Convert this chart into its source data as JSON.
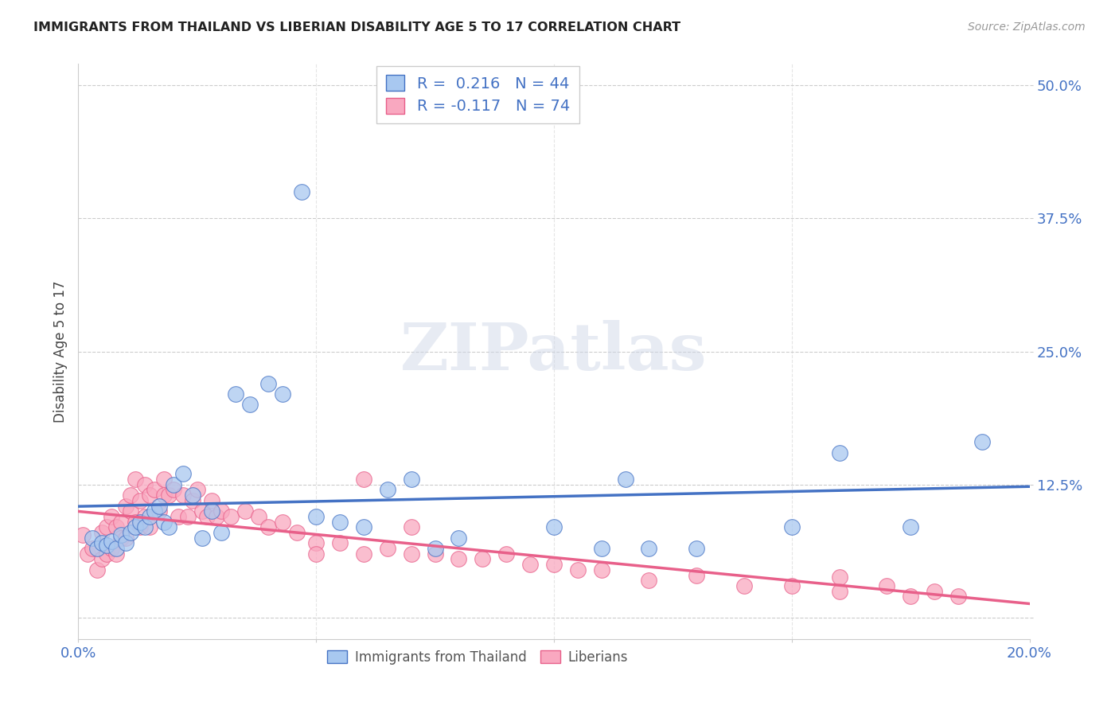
{
  "title": "IMMIGRANTS FROM THAILAND VS LIBERIAN DISABILITY AGE 5 TO 17 CORRELATION CHART",
  "source": "Source: ZipAtlas.com",
  "ylabel": "Disability Age 5 to 17",
  "xlim": [
    0.0,
    0.2
  ],
  "ylim": [
    -0.02,
    0.52
  ],
  "xticks": [
    0.0,
    0.05,
    0.1,
    0.15,
    0.2
  ],
  "xticklabels": [
    "0.0%",
    "",
    "",
    "",
    "20.0%"
  ],
  "yticks": [
    0.0,
    0.125,
    0.25,
    0.375,
    0.5
  ],
  "yticklabels": [
    "",
    "12.5%",
    "25.0%",
    "37.5%",
    "50.0%"
  ],
  "thailand_color": "#A8C8F0",
  "liberian_color": "#F9A8C0",
  "thailand_line_color": "#4472C4",
  "liberian_line_color": "#E8608A",
  "R_thailand": 0.216,
  "N_thailand": 44,
  "R_liberian": -0.117,
  "N_liberian": 74,
  "background_color": "#FFFFFF",
  "grid_color": "#CCCCCC",
  "watermark": "ZIPatlas",
  "legend_labels": [
    "Immigrants from Thailand",
    "Liberians"
  ],
  "thailand_scatter_x": [
    0.003,
    0.004,
    0.005,
    0.006,
    0.007,
    0.008,
    0.009,
    0.01,
    0.011,
    0.012,
    0.013,
    0.014,
    0.015,
    0.016,
    0.017,
    0.018,
    0.019,
    0.02,
    0.022,
    0.024,
    0.026,
    0.028,
    0.03,
    0.033,
    0.036,
    0.04,
    0.043,
    0.047,
    0.05,
    0.055,
    0.06,
    0.065,
    0.07,
    0.075,
    0.08,
    0.1,
    0.11,
    0.115,
    0.12,
    0.13,
    0.15,
    0.16,
    0.175,
    0.19
  ],
  "thailand_scatter_y": [
    0.075,
    0.065,
    0.07,
    0.068,
    0.072,
    0.065,
    0.078,
    0.07,
    0.08,
    0.085,
    0.09,
    0.085,
    0.095,
    0.1,
    0.105,
    0.09,
    0.085,
    0.125,
    0.135,
    0.115,
    0.075,
    0.1,
    0.08,
    0.21,
    0.2,
    0.22,
    0.21,
    0.4,
    0.095,
    0.09,
    0.085,
    0.12,
    0.13,
    0.065,
    0.075,
    0.085,
    0.065,
    0.13,
    0.065,
    0.065,
    0.085,
    0.155,
    0.085,
    0.165
  ],
  "liberian_scatter_x": [
    0.001,
    0.002,
    0.003,
    0.004,
    0.005,
    0.005,
    0.006,
    0.006,
    0.007,
    0.007,
    0.008,
    0.008,
    0.009,
    0.009,
    0.01,
    0.01,
    0.011,
    0.011,
    0.012,
    0.012,
    0.013,
    0.013,
    0.014,
    0.014,
    0.015,
    0.015,
    0.016,
    0.017,
    0.018,
    0.018,
    0.019,
    0.02,
    0.021,
    0.022,
    0.023,
    0.024,
    0.025,
    0.026,
    0.027,
    0.028,
    0.029,
    0.03,
    0.032,
    0.035,
    0.038,
    0.04,
    0.043,
    0.046,
    0.05,
    0.055,
    0.06,
    0.065,
    0.07,
    0.075,
    0.08,
    0.085,
    0.09,
    0.095,
    0.1,
    0.105,
    0.11,
    0.12,
    0.13,
    0.14,
    0.15,
    0.16,
    0.17,
    0.175,
    0.18,
    0.185,
    0.05,
    0.06,
    0.07,
    0.16
  ],
  "liberian_scatter_y": [
    0.078,
    0.06,
    0.065,
    0.045,
    0.08,
    0.055,
    0.085,
    0.06,
    0.095,
    0.065,
    0.085,
    0.06,
    0.09,
    0.075,
    0.075,
    0.105,
    0.1,
    0.115,
    0.09,
    0.13,
    0.085,
    0.11,
    0.095,
    0.125,
    0.115,
    0.085,
    0.12,
    0.1,
    0.13,
    0.115,
    0.115,
    0.12,
    0.095,
    0.115,
    0.095,
    0.11,
    0.12,
    0.1,
    0.095,
    0.11,
    0.095,
    0.1,
    0.095,
    0.1,
    0.095,
    0.085,
    0.09,
    0.08,
    0.07,
    0.07,
    0.06,
    0.065,
    0.06,
    0.06,
    0.055,
    0.055,
    0.06,
    0.05,
    0.05,
    0.045,
    0.045,
    0.035,
    0.04,
    0.03,
    0.03,
    0.025,
    0.03,
    0.02,
    0.025,
    0.02,
    0.06,
    0.13,
    0.085,
    0.038
  ]
}
